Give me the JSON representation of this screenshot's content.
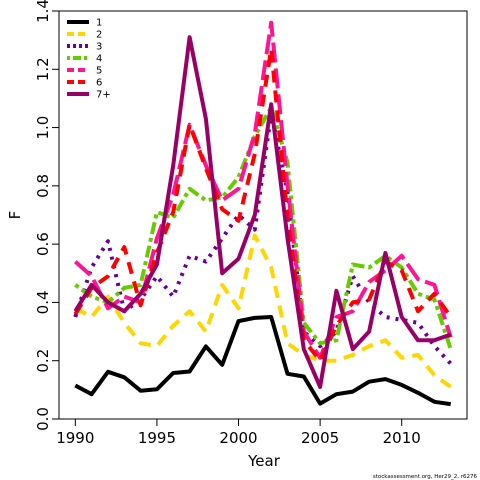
{
  "chart_data": {
    "type": "line",
    "title": "",
    "xlabel": "Year",
    "ylabel": "F",
    "xlim": [
      1989,
      2014
    ],
    "ylim": [
      0,
      1.4
    ],
    "xticks": [
      1990,
      1995,
      2000,
      2005,
      2010
    ],
    "yticks": [
      0.0,
      0.2,
      0.4,
      0.6,
      0.8,
      1.0,
      1.2,
      1.4
    ],
    "ytick_labels": [
      "0.0",
      "0.2",
      "0.4",
      "0.6",
      "0.8",
      "1.0",
      "1.2",
      "1.4"
    ],
    "grid": false,
    "legend_position": "top-left",
    "x": [
      1990,
      1991,
      1992,
      1993,
      1994,
      1995,
      1996,
      1997,
      1998,
      1999,
      2000,
      2001,
      2002,
      2003,
      2004,
      2005,
      2006,
      2007,
      2008,
      2009,
      2010,
      2011,
      2012,
      2013
    ],
    "series": [
      {
        "name": "1",
        "color": "#000000",
        "dash": "solid",
        "values": [
          0.115,
          0.085,
          0.162,
          0.143,
          0.097,
          0.102,
          0.158,
          0.163,
          0.249,
          0.186,
          0.336,
          0.347,
          0.35,
          0.155,
          0.146,
          0.053,
          0.085,
          0.094,
          0.128,
          0.137,
          0.117,
          0.09,
          0.059,
          0.051
        ]
      },
      {
        "name": "2",
        "color": "#ffd700",
        "dash": "dash",
        "values": [
          0.38,
          0.35,
          0.42,
          0.33,
          0.26,
          0.25,
          0.32,
          0.37,
          0.3,
          0.46,
          0.38,
          0.63,
          0.52,
          0.26,
          0.22,
          0.2,
          0.2,
          0.22,
          0.25,
          0.27,
          0.21,
          0.22,
          0.15,
          0.11
        ]
      },
      {
        "name": "3",
        "color": "#660099",
        "dash": "dot",
        "values": [
          0.35,
          0.52,
          0.61,
          0.37,
          0.41,
          0.49,
          0.42,
          0.56,
          0.54,
          0.62,
          0.7,
          0.65,
          1.05,
          0.78,
          0.3,
          0.25,
          0.3,
          0.49,
          0.4,
          0.35,
          0.34,
          0.33,
          0.25,
          0.19
        ]
      },
      {
        "name": "4",
        "color": "#66cc00",
        "dash": "dot-dash",
        "values": [
          0.46,
          0.42,
          0.4,
          0.45,
          0.46,
          0.71,
          0.69,
          0.79,
          0.75,
          0.76,
          0.83,
          0.97,
          1.07,
          0.88,
          0.33,
          0.26,
          0.27,
          0.53,
          0.52,
          0.56,
          0.52,
          0.43,
          0.41,
          0.24
        ]
      },
      {
        "name": "5",
        "color": "#ff1493",
        "dash": "longdash",
        "values": [
          0.54,
          0.49,
          0.38,
          0.42,
          0.4,
          0.62,
          0.77,
          1.01,
          0.87,
          0.75,
          0.79,
          0.98,
          1.36,
          0.8,
          0.3,
          0.21,
          0.35,
          0.37,
          0.47,
          0.51,
          0.56,
          0.48,
          0.46,
          0.28
        ]
      },
      {
        "name": "6",
        "color": "#ff0000",
        "dash": "dash",
        "values": [
          0.36,
          0.45,
          0.49,
          0.59,
          0.39,
          0.57,
          0.71,
          1.01,
          0.86,
          0.72,
          0.68,
          0.91,
          1.27,
          0.69,
          0.27,
          0.2,
          0.32,
          0.4,
          0.41,
          0.54,
          0.51,
          0.37,
          0.43,
          0.35
        ]
      },
      {
        "name": "7+",
        "color": "#990066",
        "dash": "solid",
        "values": [
          0.37,
          0.46,
          0.4,
          0.37,
          0.43,
          0.53,
          0.87,
          1.31,
          1.03,
          0.5,
          0.55,
          0.7,
          1.08,
          0.62,
          0.24,
          0.11,
          0.44,
          0.24,
          0.3,
          0.57,
          0.35,
          0.27,
          0.27,
          0.29
        ]
      }
    ]
  },
  "credit": "stockassessment.org, Her29_2, r6276"
}
